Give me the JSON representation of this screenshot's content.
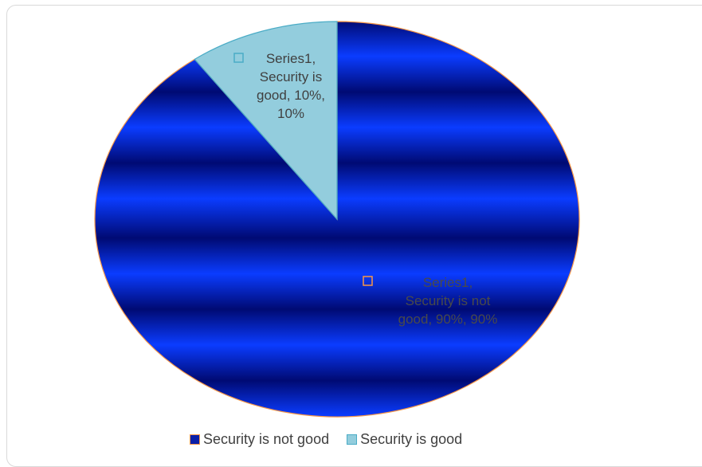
{
  "chart_data": {
    "type": "pie",
    "series_name": "Series1",
    "categories": [
      "Security is not good",
      "Security is good"
    ],
    "values": [
      90,
      10
    ],
    "percent_labels": [
      "90%",
      "10%"
    ],
    "data_labels": [
      [
        "Series1,",
        "Security is not",
        "good, 90%, 90%"
      ],
      [
        "Series1,",
        "Security is",
        "good, 10%,",
        "10%"
      ]
    ],
    "colors": [
      "#0a1fa8",
      "#93cddd"
    ],
    "label_colors": [
      "#4a4a4a",
      "#404040"
    ],
    "slice_border_color": "#f79646",
    "legend_position": "bottom"
  },
  "legend": {
    "items": [
      {
        "label": "Security is not good",
        "color": "#0a1fa8"
      },
      {
        "label": "Security is good",
        "color": "#93cddd"
      }
    ]
  }
}
